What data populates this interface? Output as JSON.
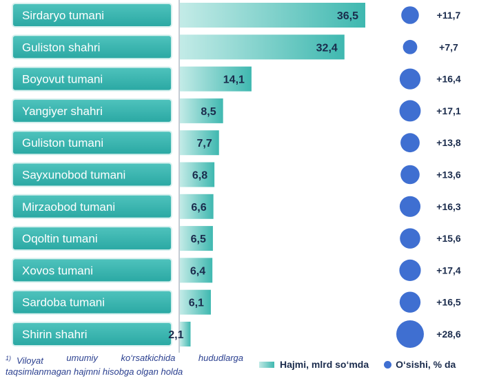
{
  "chart_data": {
    "type": "bar",
    "categories": [
      "Sirdaryo tumani",
      "Guliston shahri",
      "Boyovut tumani",
      "Yangiyer shahri",
      "Guliston tumani",
      "Sayxunobod tumani",
      "Mirzaobod tumani",
      "Oqoltin tumani",
      "Xovos tumani",
      "Sardoba tumani",
      "Shirin shahri"
    ],
    "series": [
      {
        "name": "Hajmi, mlrd so‘mda",
        "values": [
          36.5,
          32.4,
          14.1,
          8.5,
          7.7,
          6.8,
          6.6,
          6.5,
          6.4,
          6.1,
          2.1
        ],
        "labels": [
          "36,5",
          "32,4",
          "14,1",
          "8,5",
          "7,7",
          "6,8",
          "6,6",
          "6,5",
          "6,4",
          "6,1",
          "2,1"
        ]
      },
      {
        "name": "O‘sishi, % da",
        "values": [
          11.7,
          7.7,
          16.4,
          17.1,
          13.8,
          13.6,
          16.3,
          15.6,
          17.4,
          16.5,
          28.6
        ],
        "labels": [
          "+11,7",
          "+7,7",
          "+16,4",
          "+17,1",
          "+13,8",
          "+13,6",
          "+16,3",
          "+15,6",
          "+17,4",
          "+16,5",
          "+28,6"
        ]
      }
    ],
    "colors": {
      "label_box": "#2aa8a3",
      "label_box_light": "#4fc3bd",
      "bar_light": "#c3ebe7",
      "bar_dark": "#3fb8b0",
      "bubble": "#3f6fd1",
      "text_dark": "#1a2b4c"
    },
    "legend_position": "bottom-right",
    "grid": false
  },
  "footnote": {
    "marker": "1)",
    "line1_words": [
      "Viloyat",
      "umumiy",
      "ko‘rsatkichida",
      "hududlarga"
    ],
    "line2": "taqsimlanmagan hajmni hisobga olgan holda"
  },
  "legend": {
    "volume_label": "Hajmi, mlrd so‘mda",
    "growth_label": "O‘sishi, % da"
  }
}
